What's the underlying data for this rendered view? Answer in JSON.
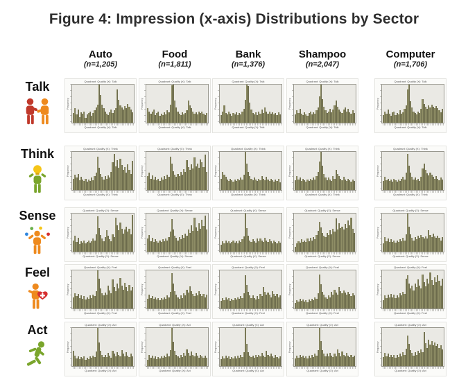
{
  "figure": {
    "title": "Figure 4: Impression (x-axis) Distributions by Sector"
  },
  "columns": [
    {
      "label": "Auto",
      "n": "(n=1,205)"
    },
    {
      "label": "Food",
      "n": "(n=1,811)"
    },
    {
      "label": "Bank",
      "n": "(n=1,376)"
    },
    {
      "label": "Shampoo",
      "n": "(n=2,047)"
    },
    {
      "label": "Computer",
      "n": "(n=1,706)"
    }
  ],
  "rows": [
    {
      "label": "Talk",
      "icon": "talk-people-icon"
    },
    {
      "label": "Think",
      "icon": "think-lightbulb-person-icon"
    },
    {
      "label": "Sense",
      "icon": "sense-juggler-icon"
    },
    {
      "label": "Feel",
      "icon": "feel-heart-person-icon"
    },
    {
      "label": "Act",
      "icon": "act-runner-icon"
    }
  ],
  "mini_chart": {
    "ylabel": "Frequency",
    "title_template": "Quadrant: Quality (X): {row}"
  },
  "colors": {
    "bar": "#8e8d65",
    "bar_edge": "#6c6b4c",
    "plot_bg": "#eae9e4",
    "icon_red": "#c0392b",
    "icon_orange": "#ee8a1e",
    "icon_green": "#7aa52c",
    "icon_yellow": "#f5c518",
    "icon_blue": "#2e86de",
    "icon_heart": "#d63031"
  },
  "chart_data": {
    "type": "bar",
    "subtype": "histogram-grid",
    "title": "Figure 4: Impression (x-axis) Distributions by Sector",
    "ylabel": "Frequency",
    "bins": 40,
    "rows": [
      "Talk",
      "Think",
      "Sense",
      "Feel",
      "Act"
    ],
    "columns": [
      "Auto",
      "Food",
      "Bank",
      "Shampoo",
      "Computer"
    ],
    "values": {
      "Talk": {
        "Auto": [
          25,
          38,
          22,
          35,
          15,
          28,
          24,
          30,
          12,
          22,
          26,
          30,
          18,
          26,
          32,
          40,
          48,
          100,
          72,
          48,
          38,
          30,
          24,
          20,
          28,
          34,
          26,
          32,
          38,
          88,
          60,
          46,
          40,
          34,
          44,
          38,
          50,
          42,
          34,
          28
        ],
        "Food": [
          38,
          30,
          24,
          30,
          34,
          20,
          26,
          30,
          18,
          24,
          20,
          28,
          22,
          32,
          28,
          48,
          98,
          100,
          58,
          40,
          30,
          24,
          20,
          28,
          22,
          26,
          32,
          58,
          46,
          38,
          30,
          24,
          28,
          22,
          30,
          26,
          30,
          24,
          20,
          26
        ],
        "Bank": [
          20,
          30,
          45,
          26,
          22,
          30,
          24,
          18,
          26,
          22,
          28,
          20,
          26,
          22,
          30,
          36,
          60,
          100,
          96,
          52,
          34,
          26,
          22,
          28,
          20,
          30,
          24,
          34,
          26,
          40,
          30,
          24,
          30,
          24,
          28,
          22,
          26,
          20,
          28,
          22
        ],
        "Shampoo": [
          22,
          32,
          26,
          36,
          24,
          20,
          28,
          22,
          18,
          26,
          30,
          22,
          28,
          24,
          32,
          40,
          70,
          100,
          62,
          42,
          32,
          26,
          30,
          36,
          28,
          34,
          46,
          58,
          42,
          34,
          30,
          26,
          34,
          40,
          30,
          36,
          28,
          24,
          32,
          26
        ],
        "Computer": [
          20,
          30,
          24,
          34,
          24,
          18,
          28,
          30,
          20,
          26,
          22,
          32,
          24,
          28,
          36,
          46,
          88,
          100,
          56,
          40,
          30,
          26,
          22,
          30,
          26,
          36,
          62,
          50,
          42,
          36,
          46,
          40,
          48,
          42,
          38,
          44,
          38,
          32,
          28,
          36
        ]
      },
      "Think": {
        "Auto": [
          30,
          40,
          32,
          42,
          26,
          34,
          28,
          24,
          30,
          22,
          28,
          24,
          32,
          26,
          36,
          46,
          88,
          58,
          42,
          34,
          28,
          36,
          30,
          38,
          32,
          48,
          72,
          95,
          62,
          78,
          58,
          82,
          66,
          52,
          60,
          46,
          68,
          52,
          42,
          76
        ],
        "Food": [
          36,
          46,
          30,
          38,
          28,
          34,
          26,
          30,
          24,
          32,
          28,
          36,
          30,
          40,
          34,
          88,
          70,
          50,
          40,
          34,
          42,
          36,
          48,
          40,
          55,
          48,
          78,
          60,
          52,
          68,
          56,
          85,
          62,
          70,
          58,
          80,
          72,
          60,
          92,
          48
        ],
        "Bank": [
          30,
          48,
          40,
          34,
          28,
          24,
          30,
          26,
          22,
          28,
          24,
          30,
          26,
          32,
          28,
          40,
          100,
          70,
          48,
          36,
          30,
          26,
          32,
          28,
          24,
          30,
          26,
          36,
          30,
          26,
          34,
          28,
          24,
          30,
          26,
          22,
          28,
          24,
          30,
          20
        ],
        "Shampoo": [
          26,
          36,
          28,
          32,
          24,
          30,
          26,
          22,
          28,
          24,
          30,
          26,
          32,
          28,
          36,
          48,
          74,
          100,
          64,
          42,
          32,
          26,
          32,
          28,
          24,
          36,
          30,
          52,
          42,
          36,
          30,
          26,
          34,
          28,
          24,
          30,
          26,
          22,
          28,
          24
        ],
        "Computer": [
          24,
          34,
          26,
          30,
          24,
          28,
          22,
          30,
          26,
          22,
          28,
          24,
          30,
          34,
          28,
          46,
          95,
          64,
          46,
          34,
          28,
          32,
          26,
          30,
          24,
          34,
          56,
          70,
          52,
          44,
          38,
          46,
          40,
          34,
          30,
          36,
          30,
          26,
          32,
          28
        ]
      },
      "Sense": {
        "Auto": [
          30,
          42,
          26,
          36,
          20,
          28,
          24,
          30,
          22,
          26,
          30,
          24,
          28,
          34,
          30,
          46,
          92,
          62,
          44,
          34,
          28,
          38,
          56,
          42,
          32,
          28,
          46,
          38,
          90,
          70,
          56,
          76,
          60,
          48,
          58,
          66,
          52,
          60,
          46,
          96
        ],
        "Food": [
          34,
          44,
          28,
          36,
          26,
          32,
          28,
          24,
          30,
          26,
          32,
          28,
          34,
          30,
          38,
          52,
          86,
          58,
          42,
          36,
          30,
          38,
          32,
          44,
          36,
          48,
          42,
          58,
          50,
          70,
          55,
          90,
          64,
          54,
          74,
          60,
          84,
          68,
          95,
          58
        ],
        "Bank": [
          18,
          28,
          22,
          30,
          24,
          28,
          22,
          26,
          30,
          24,
          28,
          22,
          30,
          26,
          32,
          40,
          100,
          62,
          42,
          30,
          26,
          32,
          28,
          24,
          34,
          28,
          34,
          30,
          26,
          36,
          30,
          26,
          32,
          28,
          22,
          30,
          26,
          22,
          28,
          24
        ],
        "Shampoo": [
          12,
          22,
          28,
          24,
          32,
          26,
          30,
          26,
          34,
          28,
          36,
          30,
          38,
          32,
          44,
          54,
          78,
          64,
          50,
          42,
          38,
          50,
          44,
          56,
          46,
          60,
          52,
          88,
          58,
          74,
          62,
          66,
          58,
          72,
          62,
          82,
          70,
          90,
          60,
          50
        ],
        "Computer": [
          22,
          38,
          28,
          34,
          26,
          32,
          26,
          30,
          24,
          30,
          26,
          32,
          28,
          36,
          30,
          46,
          100,
          66,
          46,
          36,
          30,
          38,
          32,
          42,
          36,
          44,
          38,
          34,
          40,
          34,
          56,
          44,
          38,
          48,
          40,
          36,
          42,
          36,
          30,
          38
        ]
      },
      "Feel": {
        "Auto": [
          30,
          40,
          32,
          38,
          28,
          34,
          26,
          32,
          24,
          30,
          26,
          34,
          28,
          36,
          32,
          46,
          100,
          78,
          52,
          40,
          34,
          42,
          36,
          60,
          48,
          40,
          76,
          56,
          46,
          66,
          52,
          80,
          60,
          50,
          68,
          56,
          46,
          62,
          48,
          56
        ],
        "Food": [
          26,
          36,
          28,
          32,
          26,
          30,
          24,
          28,
          22,
          28,
          24,
          30,
          26,
          34,
          30,
          44,
          92,
          66,
          46,
          36,
          30,
          26,
          34,
          28,
          40,
          34,
          50,
          42,
          58,
          46,
          38,
          32,
          40,
          34,
          46,
          38,
          32,
          38,
          30,
          36
        ],
        "Bank": [
          20,
          28,
          22,
          30,
          24,
          28,
          20,
          26,
          22,
          28,
          24,
          30,
          26,
          32,
          28,
          40,
          88,
          62,
          44,
          34,
          28,
          34,
          28,
          24,
          32,
          26,
          38,
          32,
          56,
          44,
          36,
          42,
          36,
          30,
          46,
          38,
          32,
          38,
          30,
          34
        ],
        "Shampoo": [
          14,
          22,
          18,
          26,
          20,
          24,
          18,
          22,
          16,
          24,
          20,
          26,
          22,
          30,
          26,
          40,
          90,
          64,
          44,
          36,
          30,
          26,
          34,
          30,
          44,
          36,
          50,
          42,
          36,
          56,
          46,
          40,
          48,
          42,
          36,
          44,
          38,
          32,
          40,
          34
        ],
        "Computer": [
          22,
          34,
          28,
          36,
          30,
          38,
          30,
          36,
          28,
          34,
          30,
          40,
          34,
          44,
          38,
          78,
          88,
          66,
          52,
          60,
          48,
          66,
          56,
          76,
          60,
          52,
          90,
          70,
          58,
          78,
          66,
          95,
          74,
          62,
          82,
          70,
          88,
          72,
          60,
          78
        ]
      },
      "Act": {
        "Auto": [
          40,
          28,
          20,
          26,
          18,
          24,
          20,
          26,
          16,
          22,
          18,
          26,
          22,
          28,
          24,
          38,
          100,
          62,
          40,
          30,
          24,
          30,
          24,
          34,
          28,
          22,
          40,
          32,
          26,
          36,
          30,
          26,
          42,
          32,
          26,
          36,
          28,
          24,
          32,
          26
        ],
        "Food": [
          16,
          30,
          22,
          28,
          20,
          26,
          18,
          24,
          20,
          26,
          22,
          28,
          24,
          32,
          26,
          42,
          100,
          64,
          40,
          30,
          26,
          22,
          30,
          24,
          34,
          28,
          44,
          34,
          28,
          38,
          30,
          26,
          34,
          28,
          22,
          30,
          26,
          22,
          28,
          22
        ],
        "Bank": [
          18,
          26,
          20,
          28,
          22,
          26,
          18,
          24,
          20,
          26,
          20,
          28,
          22,
          30,
          24,
          36,
          100,
          58,
          36,
          28,
          24,
          28,
          22,
          30,
          24,
          30,
          26,
          34,
          28,
          24,
          40,
          30,
          26,
          32,
          26,
          22,
          30,
          24,
          20,
          26
        ],
        "Shampoo": [
          20,
          28,
          22,
          30,
          24,
          28,
          22,
          26,
          20,
          28,
          22,
          30,
          24,
          32,
          28,
          42,
          100,
          66,
          42,
          32,
          26,
          32,
          26,
          34,
          28,
          24,
          32,
          26,
          44,
          34,
          26,
          38,
          30,
          26,
          34,
          28,
          24,
          30,
          24,
          28
        ],
        "Computer": [
          24,
          34,
          26,
          32,
          24,
          30,
          24,
          30,
          22,
          30,
          24,
          32,
          26,
          36,
          30,
          46,
          80,
          58,
          42,
          34,
          28,
          36,
          30,
          40,
          34,
          44,
          36,
          90,
          60,
          48,
          70,
          56,
          66,
          54,
          62,
          52,
          58,
          48,
          54,
          44
        ]
      }
    }
  }
}
